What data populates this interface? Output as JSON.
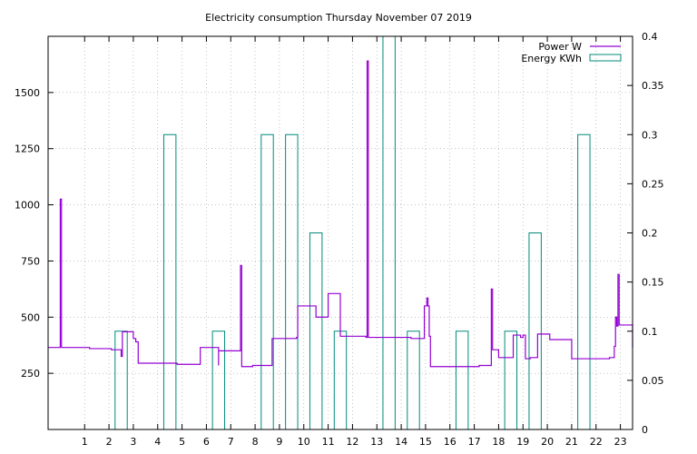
{
  "chart_data": {
    "type": "line",
    "title": "Electricity consumption Thursday November 07 2019",
    "x_axis": {
      "range": [
        -0.5,
        23.5
      ],
      "ticks": [
        1,
        2,
        3,
        4,
        5,
        6,
        7,
        8,
        9,
        10,
        11,
        12,
        13,
        14,
        15,
        16,
        17,
        18,
        19,
        20,
        21,
        22,
        23
      ]
    },
    "y_left": {
      "range": [
        0,
        1750
      ],
      "ticks": [
        250,
        500,
        750,
        1000,
        1250,
        1500
      ]
    },
    "y_right": {
      "range": [
        0,
        0.4
      ],
      "ticks": [
        0,
        0.05,
        0.1,
        0.15,
        0.2,
        0.25,
        0.3,
        0.35,
        0.4
      ]
    },
    "grid": true,
    "legend_position": "top-right",
    "series": [
      {
        "name": "Power W",
        "axis": "left",
        "color": "#9400d3",
        "style": "step",
        "x": [
          -0.5,
          0.0,
          0.05,
          0.1,
          1.2,
          2.1,
          2.5,
          2.55,
          3.0,
          3.1,
          3.2,
          3.25,
          4.8,
          5.35,
          5.75,
          6.1,
          6.5,
          6.5,
          7.4,
          7.45,
          7.55,
          7.9,
          8.2,
          8.5,
          8.65,
          8.7,
          9.7,
          9.75,
          10.4,
          10.5,
          11.0,
          11.05,
          11.5,
          12.55,
          12.6,
          12.65,
          13.9,
          14.4,
          14.95,
          15.05,
          15.1,
          15.15,
          15.2,
          16.4,
          17.2,
          17.65,
          17.7,
          17.75,
          18.0,
          18.5,
          18.6,
          18.8,
          18.9,
          19.0,
          19.1,
          19.3,
          19.6,
          20.0,
          20.1,
          21.0,
          21.8,
          22.5,
          22.55,
          22.75,
          22.8,
          22.85,
          22.9,
          22.95,
          23.0,
          23.5
        ],
        "values": [
          365,
          1025,
          365,
          365,
          360,
          355,
          325,
          435,
          405,
          390,
          295,
          295,
          290,
          290,
          365,
          365,
          285,
          350,
          730,
          280,
          280,
          285,
          285,
          285,
          285,
          405,
          410,
          550,
          550,
          500,
          605,
          605,
          415,
          410,
          1640,
          410,
          410,
          405,
          550,
          585,
          550,
          415,
          280,
          280,
          285,
          285,
          625,
          355,
          320,
          320,
          420,
          420,
          410,
          420,
          315,
          320,
          425,
          425,
          400,
          315,
          315,
          315,
          320,
          370,
          500,
          460,
          690,
          465,
          465,
          365
        ]
      },
      {
        "name": "Energy KWh",
        "axis": "right",
        "color": "#008b7a",
        "style": "boxes",
        "categories": [
          0,
          1,
          2,
          3,
          4,
          5,
          6,
          7,
          8,
          9,
          10,
          11,
          12,
          13,
          14,
          15,
          16,
          17,
          18,
          19,
          20,
          21,
          22,
          23
        ],
        "values": [
          0,
          0,
          0.1,
          0,
          0.3,
          0,
          0.1,
          0,
          0.3,
          0.3,
          0.2,
          0.1,
          0,
          0.4,
          0.1,
          0,
          0.1,
          0,
          0.1,
          0.2,
          0,
          0.3,
          0,
          0
        ]
      }
    ]
  }
}
